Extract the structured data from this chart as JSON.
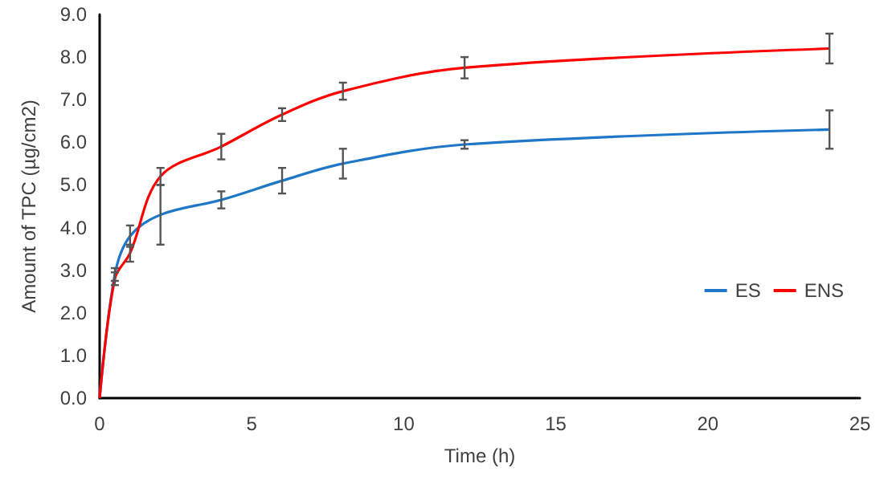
{
  "chart_data": {
    "type": "line",
    "xlabel": "Time (h)",
    "ylabel": "Amount of TPC (µg/cm2)",
    "x": [
      0,
      0.5,
      1,
      2,
      4,
      6,
      8,
      12,
      24
    ],
    "series": [
      {
        "name": "ES",
        "color": "#1f77c8",
        "values": [
          0,
          2.9,
          3.8,
          4.3,
          4.65,
          5.1,
          5.5,
          5.95,
          6.3
        ],
        "errors": [
          null,
          0.15,
          0.25,
          0.7,
          0.2,
          0.3,
          0.35,
          0.1,
          0.45
        ]
      },
      {
        "name": "ENS",
        "color": "#ff0000",
        "values": [
          0,
          2.8,
          3.4,
          5.2,
          5.9,
          6.65,
          7.2,
          7.75,
          8.2
        ],
        "errors": [
          null,
          0.15,
          0.2,
          0.2,
          0.3,
          0.15,
          0.2,
          0.25,
          0.35
        ]
      }
    ],
    "xlim": [
      0,
      25
    ],
    "xticks": [
      0,
      5,
      10,
      15,
      20,
      25
    ],
    "ylim": [
      0,
      9
    ],
    "yticks": [
      {
        "value": 0,
        "label": "0.0"
      },
      {
        "value": 1,
        "label": "1.0"
      },
      {
        "value": 2,
        "label": "2.0"
      },
      {
        "value": 3,
        "label": "3.0"
      },
      {
        "value": 4,
        "label": "4.0"
      },
      {
        "value": 5,
        "label": "5.0"
      },
      {
        "value": 6,
        "label": "6.0"
      },
      {
        "value": 7,
        "label": "7.0"
      },
      {
        "value": 8,
        "label": "8.0"
      },
      {
        "value": 9,
        "label": "9.0"
      }
    ],
    "grid": false,
    "legend": "right"
  }
}
